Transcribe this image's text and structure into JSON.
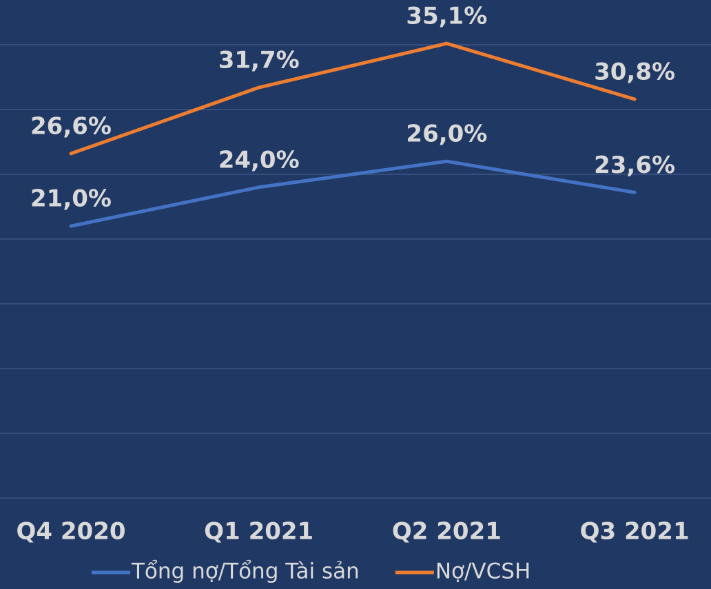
{
  "chart_data": {
    "type": "line",
    "categories": [
      "Q4 2020",
      "Q1 2021",
      "Q2 2021",
      "Q3 2021"
    ],
    "series": [
      {
        "name": "Tổng nợ/Tổng Tài sản",
        "color": "#4472c4",
        "values": [
          21.0,
          24.0,
          26.0,
          23.6
        ],
        "value_labels": [
          "21,0%",
          "24,0%",
          "26,0%",
          "23,6%"
        ]
      },
      {
        "name": "Nợ/VCSH",
        "color": "#ed7d31",
        "values": [
          26.6,
          31.7,
          35.1,
          30.8
        ],
        "value_labels": [
          "26,6%",
          "31,7%",
          "35,1%",
          "30,8%"
        ]
      }
    ],
    "ylim": [
      0,
      38
    ],
    "yticks": [
      0,
      5,
      10,
      15,
      20,
      25,
      30,
      35
    ],
    "grid": true,
    "legend": "bottom"
  }
}
